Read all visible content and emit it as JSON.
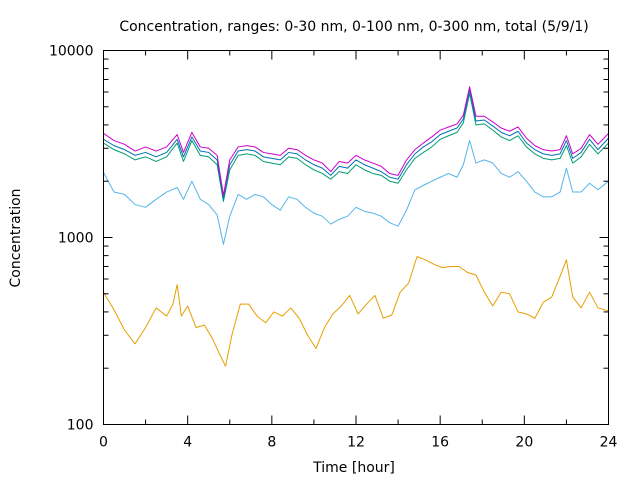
{
  "chart_data": {
    "type": "line",
    "title": "Concentration, ranges: 0-30 nm, 0-100 nm, 0-300 nm, total (5/9/1)",
    "xlabel": "Time [hour]",
    "ylabel": "Concentration",
    "xlim": [
      0,
      24
    ],
    "ylim": [
      100,
      10000
    ],
    "y_scale": "log",
    "grid": false,
    "x_ticks": [
      0,
      4,
      8,
      12,
      16,
      20,
      24
    ],
    "x_tick_labels": [
      "0",
      "4",
      "8",
      "12",
      "16",
      "20",
      "24"
    ],
    "y_ticks": [
      100,
      1000,
      10000
    ],
    "y_tick_labels": [
      "100",
      "1000",
      "10000"
    ],
    "series": [
      {
        "color": "#e69f00",
        "x": [
          0,
          0.5,
          1,
          1.5,
          2,
          2.5,
          3,
          3.3,
          3.5,
          3.7,
          4,
          4.4,
          4.8,
          5.2,
          5.5,
          5.8,
          6.1,
          6.5,
          6.9,
          7.3,
          7.7,
          8.1,
          8.5,
          8.9,
          9.3,
          9.7,
          10.1,
          10.5,
          10.9,
          11.3,
          11.7,
          12.1,
          12.5,
          12.9,
          13.3,
          13.7,
          14.1,
          14.5,
          14.9,
          15.3,
          15.7,
          16.1,
          16.5,
          16.9,
          17.3,
          17.7,
          18.1,
          18.5,
          18.9,
          19.3,
          19.7,
          20.1,
          20.5,
          20.9,
          21.3,
          21.7,
          22.0,
          22.3,
          22.7,
          23.1,
          23.5,
          24
        ],
        "y": [
          510,
          410,
          320,
          270,
          330,
          420,
          380,
          440,
          560,
          380,
          430,
          330,
          340,
          285,
          240,
          205,
          300,
          440,
          440,
          380,
          350,
          400,
          380,
          420,
          370,
          300,
          255,
          330,
          390,
          430,
          490,
          390,
          440,
          490,
          370,
          385,
          510,
          570,
          790,
          760,
          720,
          690,
          700,
          700,
          650,
          630,
          510,
          430,
          510,
          500,
          400,
          390,
          370,
          450,
          480,
          620,
          760,
          480,
          420,
          510,
          420,
          405
        ]
      },
      {
        "color": "#56b4e9",
        "x": [
          0,
          0.5,
          1,
          1.5,
          2,
          2.5,
          3,
          3.5,
          3.8,
          4.2,
          4.6,
          5.0,
          5.4,
          5.7,
          6.0,
          6.4,
          6.8,
          7.2,
          7.6,
          8.0,
          8.4,
          8.8,
          9.2,
          9.6,
          10.0,
          10.4,
          10.8,
          11.2,
          11.6,
          12.0,
          12.4,
          12.8,
          13.2,
          13.6,
          14.0,
          14.4,
          14.8,
          15.2,
          15.6,
          16.0,
          16.4,
          16.8,
          17.1,
          17.4,
          17.7,
          18.1,
          18.5,
          18.9,
          19.3,
          19.7,
          20.1,
          20.5,
          20.9,
          21.3,
          21.7,
          22.0,
          22.3,
          22.7,
          23.1,
          23.5,
          24
        ],
        "y": [
          2230,
          1750,
          1700,
          1500,
          1450,
          1600,
          1750,
          1850,
          1600,
          2000,
          1600,
          1500,
          1320,
          920,
          1300,
          1700,
          1600,
          1700,
          1650,
          1500,
          1400,
          1650,
          1600,
          1450,
          1350,
          1300,
          1180,
          1250,
          1300,
          1450,
          1380,
          1350,
          1300,
          1200,
          1150,
          1400,
          1800,
          1900,
          2000,
          2100,
          2200,
          2100,
          2450,
          3300,
          2500,
          2600,
          2500,
          2200,
          2100,
          2250,
          2000,
          1750,
          1650,
          1650,
          1750,
          2350,
          1750,
          1750,
          1950,
          1800,
          2000
        ]
      },
      {
        "color": "#009e73",
        "x": [
          0,
          0.5,
          1,
          1.5,
          2,
          2.5,
          3,
          3.5,
          3.8,
          4.2,
          4.6,
          5.0,
          5.4,
          5.7,
          6.0,
          6.4,
          6.8,
          7.2,
          7.6,
          8.0,
          8.4,
          8.8,
          9.2,
          9.6,
          10.0,
          10.4,
          10.8,
          11.2,
          11.6,
          12.0,
          12.4,
          12.8,
          13.2,
          13.6,
          14.0,
          14.4,
          14.8,
          15.2,
          15.6,
          16.0,
          16.4,
          16.8,
          17.1,
          17.4,
          17.7,
          18.1,
          18.5,
          18.9,
          19.3,
          19.7,
          20.1,
          20.5,
          20.9,
          21.3,
          21.7,
          22.0,
          22.3,
          22.7,
          23.1,
          23.5,
          24
        ],
        "y": [
          3200,
          2950,
          2800,
          2600,
          2700,
          2550,
          2700,
          3200,
          2550,
          3300,
          2750,
          2700,
          2450,
          1560,
          2300,
          2750,
          2800,
          2750,
          2550,
          2500,
          2450,
          2700,
          2650,
          2450,
          2300,
          2200,
          2050,
          2250,
          2200,
          2450,
          2300,
          2200,
          2150,
          2000,
          1950,
          2300,
          2650,
          2850,
          3050,
          3350,
          3500,
          3650,
          4100,
          5900,
          4000,
          4050,
          3750,
          3450,
          3300,
          3500,
          3050,
          2800,
          2650,
          2600,
          2650,
          3100,
          2500,
          2700,
          3150,
          2800,
          3200
        ]
      },
      {
        "color": "#0072b2",
        "x": [
          0,
          0.5,
          1,
          1.5,
          2,
          2.5,
          3,
          3.5,
          3.8,
          4.2,
          4.6,
          5.0,
          5.4,
          5.7,
          6.0,
          6.4,
          6.8,
          7.2,
          7.6,
          8.0,
          8.4,
          8.8,
          9.2,
          9.6,
          10.0,
          10.4,
          10.8,
          11.2,
          11.6,
          12.0,
          12.4,
          12.8,
          13.2,
          13.6,
          14.0,
          14.4,
          14.8,
          15.2,
          15.6,
          16.0,
          16.4,
          16.8,
          17.1,
          17.4,
          17.7,
          18.1,
          18.5,
          18.9,
          19.3,
          19.7,
          20.1,
          20.5,
          20.9,
          21.3,
          21.7,
          22.0,
          22.3,
          22.7,
          23.1,
          23.5,
          24
        ],
        "y": [
          3350,
          3100,
          2950,
          2750,
          2850,
          2700,
          2850,
          3350,
          2700,
          3450,
          2900,
          2850,
          2600,
          1610,
          2450,
          2900,
          2950,
          2900,
          2700,
          2650,
          2600,
          2850,
          2800,
          2600,
          2450,
          2350,
          2150,
          2400,
          2350,
          2600,
          2450,
          2350,
          2250,
          2100,
          2050,
          2450,
          2800,
          3050,
          3250,
          3550,
          3700,
          3850,
          4300,
          6150,
          4200,
          4250,
          3950,
          3650,
          3500,
          3700,
          3200,
          2950,
          2800,
          2750,
          2800,
          3300,
          2650,
          2850,
          3350,
          2950,
          3400
        ]
      },
      {
        "color": "#cc00cc",
        "x": [
          0,
          0.5,
          1,
          1.5,
          2,
          2.5,
          3,
          3.5,
          3.8,
          4.2,
          4.6,
          5.0,
          5.4,
          5.7,
          6.0,
          6.4,
          6.8,
          7.2,
          7.6,
          8.0,
          8.4,
          8.8,
          9.2,
          9.6,
          10.0,
          10.4,
          10.8,
          11.2,
          11.6,
          12.0,
          12.4,
          12.8,
          13.2,
          13.6,
          14.0,
          14.4,
          14.8,
          15.2,
          15.6,
          16.0,
          16.4,
          16.8,
          17.1,
          17.4,
          17.7,
          18.1,
          18.5,
          18.9,
          19.3,
          19.7,
          20.1,
          20.5,
          20.9,
          21.3,
          21.7,
          22.0,
          22.3,
          22.7,
          23.1,
          23.5,
          24
        ],
        "y": [
          3600,
          3300,
          3150,
          2900,
          3050,
          2900,
          3050,
          3550,
          2850,
          3650,
          3050,
          3000,
          2750,
          1680,
          2600,
          3050,
          3100,
          3050,
          2850,
          2800,
          2750,
          3000,
          2950,
          2750,
          2600,
          2500,
          2250,
          2550,
          2500,
          2750,
          2600,
          2500,
          2400,
          2200,
          2150,
          2600,
          2950,
          3200,
          3450,
          3750,
          3900,
          4050,
          4500,
          6400,
          4450,
          4450,
          4150,
          3850,
          3700,
          3900,
          3400,
          3100,
          2950,
          2900,
          2950,
          3500,
          2800,
          3000,
          3550,
          3150,
          3600
        ]
      }
    ]
  }
}
